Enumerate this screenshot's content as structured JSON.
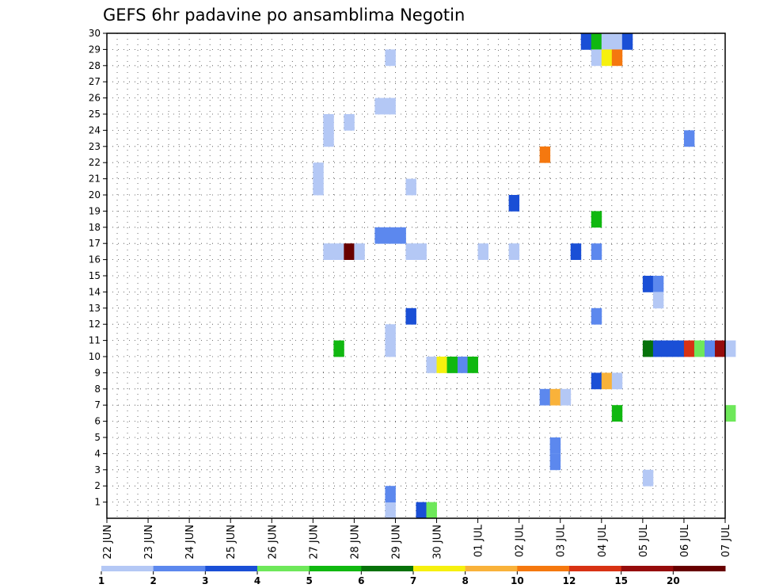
{
  "chart_data": {
    "type": "heatmap",
    "title": "GEFS 6hr padavine po ansamblima Negotin",
    "xlabel": "",
    "ylabel": "",
    "x_tick_labels": [
      "22 JUN",
      "23 JUN",
      "24 JUN",
      "25 JUN",
      "26 JUN",
      "27 JUN",
      "28 JUN",
      "29 JUN",
      "30 JUN",
      "01 JUL",
      "02 JUL",
      "03 JUL",
      "04 JUL",
      "05 JUL",
      "06 JUL",
      "07 JUL"
    ],
    "y_tick_labels": [
      "1",
      "2",
      "3",
      "4",
      "5",
      "6",
      "7",
      "8",
      "9",
      "10",
      "11",
      "12",
      "13",
      "14",
      "15",
      "16",
      "17",
      "18",
      "19",
      "20",
      "21",
      "22",
      "23",
      "24",
      "25",
      "26",
      "27",
      "28",
      "29",
      "30"
    ],
    "ylim": [
      0,
      30
    ],
    "x_step_hours": 6,
    "grid": true,
    "legend_position": "bottom",
    "legend": {
      "colors": [
        "#b4c8f5",
        "#5c88ee",
        "#1a4fd6",
        "#6ee85a",
        "#10b810",
        "#06720a",
        "#f6f00e",
        "#f9b23a",
        "#f5780f",
        "#d83214",
        "#960c0c",
        "#680000"
      ],
      "labels": [
        "1",
        "2",
        "3",
        "4",
        "5",
        "6",
        "7",
        "8",
        "10",
        "12",
        "15",
        "20"
      ]
    },
    "cells": [
      {
        "day": 6.0,
        "step": 3,
        "member": 0,
        "level": 0
      },
      {
        "day": 6.0,
        "step": 3,
        "member": 1,
        "level": 1
      },
      {
        "day": 7.0,
        "step": 2,
        "member": 0,
        "level": 2
      },
      {
        "day": 7.0,
        "step": 3,
        "member": 0,
        "level": 3
      },
      {
        "day": 8.0,
        "step": 1,
        "member": 9,
        "level": 0
      },
      {
        "day": 8.0,
        "step": 2,
        "member": 9,
        "level": 1
      },
      {
        "day": 8.0,
        "step": 3,
        "member": 9,
        "level": 4
      },
      {
        "day": 5.0,
        "step": 2,
        "member": 10,
        "level": 4
      },
      {
        "day": 6.0,
        "step": 3,
        "member": 10,
        "level": 0
      },
      {
        "day": 6.0,
        "step": 3,
        "member": 11,
        "level": 0
      },
      {
        "day": 7.0,
        "step": 1,
        "member": 12,
        "level": 2
      },
      {
        "day": 5.0,
        "step": 1,
        "member": 16,
        "level": 0
      },
      {
        "day": 5.0,
        "step": 2,
        "member": 16,
        "level": 0
      },
      {
        "day": 5.0,
        "step": 3,
        "member": 16,
        "level": 11
      },
      {
        "day": 6.0,
        "step": 0,
        "member": 16,
        "level": 0
      },
      {
        "day": 7.0,
        "step": 1,
        "member": 16,
        "level": 0
      },
      {
        "day": 7.0,
        "step": 2,
        "member": 16,
        "level": 0
      },
      {
        "day": 6.0,
        "step": 2,
        "member": 17,
        "level": 1
      },
      {
        "day": 6.0,
        "step": 3,
        "member": 17,
        "level": 1
      },
      {
        "day": 7.0,
        "step": 0,
        "member": 17,
        "level": 1
      },
      {
        "day": 5.0,
        "step": 0,
        "member": 20,
        "level": 0
      },
      {
        "day": 7.0,
        "step": 1,
        "member": 20,
        "level": 0
      },
      {
        "day": 5.0,
        "step": 0,
        "member": 21,
        "level": 0
      },
      {
        "day": 5.0,
        "step": 1,
        "member": 23,
        "level": 0
      },
      {
        "day": 5.0,
        "step": 1,
        "member": 24,
        "level": 0
      },
      {
        "day": 5.0,
        "step": 3,
        "member": 24,
        "level": 0
      },
      {
        "day": 6.0,
        "step": 2,
        "member": 25,
        "level": 0
      },
      {
        "day": 6.0,
        "step": 3,
        "member": 25,
        "level": 0
      },
      {
        "day": 6.0,
        "step": 3,
        "member": 28,
        "level": 0
      },
      {
        "day": 7.0,
        "step": 3,
        "member": 9,
        "level": 0
      },
      {
        "day": 8.0,
        "step": 0,
        "member": 9,
        "level": 6
      },
      {
        "day": 8.0,
        "step": 1,
        "member": 9,
        "level": 4
      },
      {
        "day": 9.0,
        "step": 0,
        "member": 16,
        "level": 0
      },
      {
        "day": 9.0,
        "step": 3,
        "member": 16,
        "level": 0
      },
      {
        "day": 9.0,
        "step": 3,
        "member": 19,
        "level": 2
      },
      {
        "day": 10.0,
        "step": 2,
        "member": 22,
        "level": 8
      },
      {
        "day": 10.0,
        "step": 2,
        "member": 7,
        "level": 1
      },
      {
        "day": 10.0,
        "step": 3,
        "member": 7,
        "level": 7
      },
      {
        "day": 11.0,
        "step": 0,
        "member": 7,
        "level": 0
      },
      {
        "day": 10.0,
        "step": 3,
        "member": 3,
        "level": 1
      },
      {
        "day": 10.0,
        "step": 3,
        "member": 4,
        "level": 0
      },
      {
        "day": 10.0,
        "step": 3,
        "member": 4,
        "level": 1
      },
      {
        "day": 11.0,
        "step": 1,
        "member": 16,
        "level": 2
      },
      {
        "day": 11.0,
        "step": 3,
        "member": 16,
        "level": 1
      },
      {
        "day": 11.0,
        "step": 3,
        "member": 18,
        "level": 4
      },
      {
        "day": 11.0,
        "step": 3,
        "member": 8,
        "level": 2
      },
      {
        "day": 12.0,
        "step": 0,
        "member": 8,
        "level": 7
      },
      {
        "day": 12.0,
        "step": 1,
        "member": 8,
        "level": 0
      },
      {
        "day": 12.0,
        "step": 1,
        "member": 6,
        "level": 4
      },
      {
        "day": 11.0,
        "step": 3,
        "member": 12,
        "level": 1
      },
      {
        "day": 11.0,
        "step": 2,
        "member": 29,
        "level": 2
      },
      {
        "day": 11.0,
        "step": 3,
        "member": 29,
        "level": 4
      },
      {
        "day": 12.0,
        "step": 0,
        "member": 29,
        "level": 0
      },
      {
        "day": 12.0,
        "step": 1,
        "member": 29,
        "level": 0
      },
      {
        "day": 12.0,
        "step": 2,
        "member": 29,
        "level": 2
      },
      {
        "day": 11.0,
        "step": 3,
        "member": 28,
        "level": 0
      },
      {
        "day": 12.0,
        "step": 0,
        "member": 28,
        "level": 6
      },
      {
        "day": 12.0,
        "step": 1,
        "member": 28,
        "level": 8
      },
      {
        "day": 13.0,
        "step": 0,
        "member": 14,
        "level": 2
      },
      {
        "day": 13.0,
        "step": 1,
        "member": 14,
        "level": 1
      },
      {
        "day": 13.0,
        "step": 1,
        "member": 13,
        "level": 0
      },
      {
        "day": 13.0,
        "step": 0,
        "member": 2,
        "level": 0
      },
      {
        "day": 13.0,
        "step": 0,
        "member": 10,
        "level": 5
      },
      {
        "day": 13.0,
        "step": 1,
        "member": 10,
        "level": 2
      },
      {
        "day": 13.0,
        "step": 2,
        "member": 10,
        "level": 2
      },
      {
        "day": 13.0,
        "step": 3,
        "member": 10,
        "level": 2
      },
      {
        "day": 14.0,
        "step": 0,
        "member": 10,
        "level": 9
      },
      {
        "day": 14.0,
        "step": 1,
        "member": 10,
        "level": 3
      },
      {
        "day": 14.0,
        "step": 2,
        "member": 10,
        "level": 1
      },
      {
        "day": 14.0,
        "step": 3,
        "member": 10,
        "level": 10
      },
      {
        "day": 15.0,
        "step": 0,
        "member": 10,
        "level": 0
      },
      {
        "day": 14.0,
        "step": 0,
        "member": 23,
        "level": 1
      },
      {
        "day": 15.0,
        "step": 0,
        "member": 6,
        "level": 3
      }
    ]
  }
}
